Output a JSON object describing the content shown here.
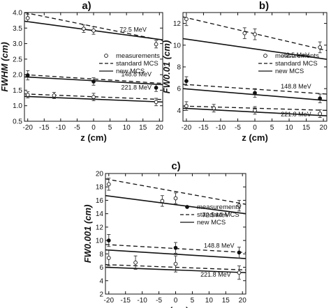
{
  "chart_data": [
    {
      "panel_label": "a)",
      "type": "line",
      "xlabel": "z (cm)",
      "ylabel": "FWHM (cm)",
      "xlim": [
        -21,
        21
      ],
      "ylim": [
        0.5,
        4.0
      ],
      "xticks": [
        -20,
        -15,
        -10,
        -5,
        0,
        5,
        10,
        15,
        20
      ],
      "yticks": [
        0.5,
        1.0,
        1.5,
        2.0,
        2.5,
        3.0,
        3.5,
        4.0
      ],
      "ytick_labels": [
        "0.5",
        "1.0",
        "1.5",
        "2.0",
        "2.5",
        "3.0",
        "3.5",
        "4.0"
      ],
      "legend": {
        "placement": "center-right",
        "entries": [
          {
            "label": "measurements",
            "style": "open-circle"
          },
          {
            "label": "standard MCS",
            "style": "dashed"
          },
          {
            "label": "new MCS",
            "style": "solid"
          }
        ]
      },
      "groups": [
        {
          "energy_label": "72.5 MeV",
          "label_at": [
            12,
            3.38
          ],
          "measurements": {
            "marker": "open",
            "x": [
              -20,
              -3,
              0,
              19
            ],
            "y": [
              3.82,
              3.48,
              3.42,
              2.98
            ],
            "err": [
              0.12,
              0.12,
              0.12,
              0.12
            ]
          },
          "standard_mcs": {
            "x": [
              -21,
              21
            ],
            "y": [
              4.0,
              3.1
            ]
          },
          "new_mcs": {
            "x": [
              -21,
              21
            ],
            "y": [
              3.72,
              3.12
            ]
          }
        },
        {
          "energy_label": "148.8 MeV",
          "label_at": [
            13,
            1.95
          ],
          "measurements": {
            "marker": "filled",
            "x": [
              -20,
              0,
              19
            ],
            "y": [
              1.98,
              1.78,
              1.58
            ],
            "err": [
              0.15,
              0.12,
              0.12
            ]
          },
          "standard_mcs": {
            "x": [
              -21,
              21
            ],
            "y": [
              2.0,
              1.72
            ]
          },
          "new_mcs": {
            "x": [
              -21,
              21
            ],
            "y": [
              1.93,
              1.68
            ]
          }
        },
        {
          "energy_label": "221.8 MeV",
          "label_at": [
            13,
            1.52
          ],
          "measurements": {
            "marker": "open",
            "x": [
              -20,
              -12,
              0,
              19
            ],
            "y": [
              1.35,
              1.33,
              1.28,
              1.12
            ],
            "err": [
              0.1,
              0.1,
              0.12,
              0.12
            ]
          },
          "standard_mcs": {
            "x": [
              -21,
              21
            ],
            "y": [
              1.38,
              1.2
            ]
          },
          "new_mcs": {
            "x": [
              -21,
              21
            ],
            "y": [
              1.3,
              1.12
            ]
          }
        }
      ]
    },
    {
      "panel_label": "b)",
      "type": "line",
      "xlabel": "z (cm)",
      "ylabel": "FW0.01 (cm)",
      "xlim": [
        -21,
        21
      ],
      "ylim": [
        3,
        13
      ],
      "xticks": [
        -20,
        -15,
        -10,
        -5,
        0,
        5,
        10,
        15,
        20
      ],
      "yticks": [
        4,
        6,
        8,
        10,
        12
      ],
      "ytick_labels": [
        "4",
        "6",
        "8",
        "10",
        "12"
      ],
      "legend": {
        "placement": "center-right",
        "entries": [
          {
            "label": "measurements",
            "style": "open-circle"
          },
          {
            "label": "standard MCS",
            "style": "dashed"
          },
          {
            "label": "new MCS",
            "style": "solid"
          }
        ]
      },
      "groups": [
        {
          "energy_label": "72.5 MeV",
          "label_at": [
            12,
            8.9
          ],
          "measurements": {
            "marker": "open",
            "x": [
              -20,
              -3,
              0,
              19
            ],
            "y": [
              12.4,
              11.1,
              11.0,
              9.8
            ],
            "err": [
              0.6,
              0.5,
              0.5,
              0.5
            ]
          },
          "standard_mcs": {
            "x": [
              -21,
              21
            ],
            "y": [
              12.6,
              9.5
            ]
          },
          "new_mcs": {
            "x": [
              -21,
              21
            ],
            "y": [
              10.6,
              8.7
            ]
          }
        },
        {
          "energy_label": "148.8 MeV",
          "label_at": [
            12,
            6.0
          ],
          "measurements": {
            "marker": "filled",
            "x": [
              -20,
              0,
              19
            ],
            "y": [
              6.7,
              5.6,
              5.1
            ],
            "err": [
              0.4,
              0.4,
              0.4
            ]
          },
          "standard_mcs": {
            "x": [
              -21,
              21
            ],
            "y": [
              6.4,
              5.5
            ]
          },
          "new_mcs": {
            "x": [
              -21,
              21
            ],
            "y": [
              6.0,
              4.9
            ]
          }
        },
        {
          "energy_label": "221.8 MeV",
          "label_at": [
            12,
            3.45
          ],
          "measurements": {
            "marker": "open",
            "x": [
              -20,
              -12,
              0,
              19
            ],
            "y": [
              4.4,
              4.2,
              4.0,
              3.7
            ],
            "err": [
              0.4,
              0.35,
              0.35,
              0.35
            ]
          },
          "standard_mcs": {
            "x": [
              -21,
              21
            ],
            "y": [
              4.4,
              4.0
            ]
          },
          "new_mcs": {
            "x": [
              -21,
              21
            ],
            "y": [
              4.2,
              3.5
            ]
          }
        }
      ]
    },
    {
      "panel_label": "c)",
      "type": "line",
      "xlabel": "z (cm)",
      "ylabel": "FW0.001 (cm)",
      "xlim": [
        -21,
        21
      ],
      "ylim": [
        2,
        20
      ],
      "xticks": [
        -20,
        -15,
        -10,
        -5,
        0,
        5,
        10,
        15,
        20
      ],
      "yticks": [
        2,
        4,
        6,
        8,
        10,
        12,
        14,
        16,
        18,
        20
      ],
      "ytick_labels": [
        "2",
        "4",
        "6",
        "8",
        "10",
        "12",
        "14",
        "16",
        "18",
        "20"
      ],
      "legend": {
        "placement": "center-right",
        "entries": [
          {
            "label": "measurements",
            "style": "filled-circle"
          },
          {
            "label": "standard MCS",
            "style": "dashed"
          },
          {
            "label": "new MCS",
            "style": "solid"
          }
        ]
      },
      "groups": [
        {
          "energy_label": "72.5 MeV",
          "label_at": [
            12,
            13.5
          ],
          "measurements": {
            "marker": "open",
            "x": [
              -20,
              -4,
              0,
              19
            ],
            "y": [
              18.4,
              15.9,
              16.3,
              15.2
            ],
            "err": [
              0.9,
              0.8,
              0.8,
              0.8
            ]
          },
          "standard_mcs": {
            "x": [
              -21,
              21
            ],
            "y": [
              19.2,
              15.4
            ]
          },
          "new_mcs": {
            "x": [
              -21,
              21
            ],
            "y": [
              16.7,
              14.0
            ]
          }
        },
        {
          "energy_label": "148.8 MeV",
          "label_at": [
            13,
            8.9
          ],
          "measurements": {
            "marker": "filled",
            "x": [
              -20,
              0,
              19
            ],
            "y": [
              10.0,
              8.9,
              8.2
            ],
            "err": [
              0.9,
              0.8,
              0.8
            ]
          },
          "standard_mcs": {
            "x": [
              -21,
              21
            ],
            "y": [
              9.4,
              8.2
            ]
          },
          "new_mcs": {
            "x": [
              -21,
              21
            ],
            "y": [
              8.6,
              7.3
            ]
          }
        },
        {
          "energy_label": "221.8 MeV",
          "label_at": [
            12,
            4.6
          ],
          "measurements": {
            "marker": "open",
            "x": [
              -20,
              -12,
              0,
              19
            ],
            "y": [
              7.4,
              6.7,
              6.5,
              5.2
            ],
            "err": [
              1.2,
              1.0,
              1.2,
              1.0
            ]
          },
          "standard_mcs": {
            "x": [
              -21,
              21
            ],
            "y": [
              6.4,
              5.6
            ]
          },
          "new_mcs": {
            "x": [
              -21,
              21
            ],
            "y": [
              6.0,
              5.2
            ]
          }
        }
      ]
    }
  ]
}
